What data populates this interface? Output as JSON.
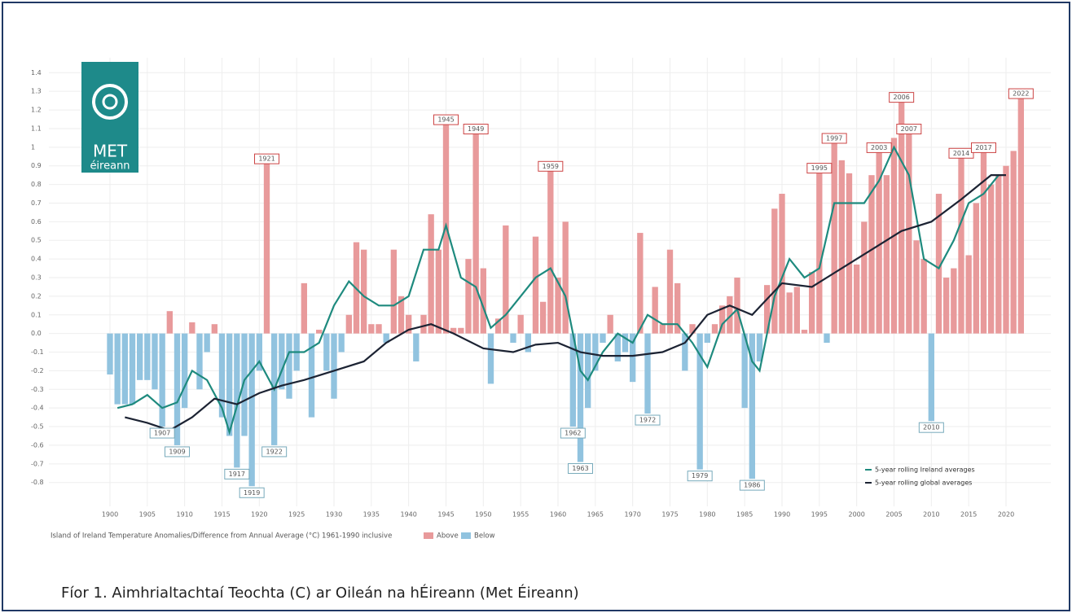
{
  "chart_data": {
    "type": "bar",
    "logo": {
      "line1": "MET",
      "line2": "éireann"
    },
    "x": [
      1900,
      1901,
      1902,
      1903,
      1904,
      1905,
      1906,
      1907,
      1908,
      1909,
      1910,
      1911,
      1912,
      1913,
      1914,
      1915,
      1916,
      1917,
      1918,
      1919,
      1920,
      1921,
      1922,
      1923,
      1924,
      1925,
      1926,
      1927,
      1928,
      1929,
      1930,
      1931,
      1932,
      1933,
      1934,
      1935,
      1936,
      1937,
      1938,
      1939,
      1940,
      1941,
      1942,
      1943,
      1944,
      1945,
      1946,
      1947,
      1948,
      1949,
      1950,
      1951,
      1952,
      1953,
      1954,
      1955,
      1956,
      1957,
      1958,
      1959,
      1960,
      1961,
      1962,
      1963,
      1964,
      1965,
      1966,
      1967,
      1968,
      1969,
      1970,
      1971,
      1972,
      1973,
      1974,
      1975,
      1976,
      1977,
      1978,
      1979,
      1980,
      1981,
      1982,
      1983,
      1984,
      1985,
      1986,
      1987,
      1988,
      1989,
      1990,
      1991,
      1992,
      1993,
      1994,
      1995,
      1996,
      1997,
      1998,
      1999,
      2000,
      2001,
      2002,
      2003,
      2004,
      2005,
      2006,
      2007,
      2008,
      2009,
      2010,
      2011,
      2012,
      2013,
      2014,
      2015,
      2016,
      2017,
      2018,
      2019,
      2020,
      2021,
      2022
    ],
    "values": [
      -0.22,
      -0.38,
      -0.38,
      -0.38,
      -0.25,
      -0.25,
      -0.3,
      -0.5,
      0.12,
      -0.6,
      -0.4,
      0.06,
      -0.3,
      -0.1,
      0.05,
      -0.45,
      -0.55,
      -0.72,
      -0.55,
      -0.82,
      -0.2,
      0.92,
      -0.6,
      -0.3,
      -0.35,
      -0.2,
      0.27,
      -0.45,
      0.02,
      -0.2,
      -0.35,
      -0.1,
      0.1,
      0.49,
      0.45,
      0.05,
      0.05,
      -0.05,
      0.45,
      0.2,
      0.1,
      -0.15,
      0.1,
      0.64,
      0.45,
      1.13,
      0.03,
      0.03,
      0.4,
      1.08,
      0.35,
      -0.27,
      0.08,
      0.58,
      -0.05,
      0.1,
      -0.1,
      0.52,
      0.17,
      0.88,
      0.3,
      0.6,
      -0.5,
      -0.69,
      -0.4,
      -0.2,
      -0.05,
      0.1,
      -0.15,
      -0.1,
      -0.26,
      0.54,
      -0.43,
      0.25,
      0.05,
      0.45,
      0.27,
      -0.2,
      0.05,
      -0.73,
      -0.05,
      0.05,
      0.15,
      0.2,
      0.3,
      -0.4,
      -0.78,
      -0.15,
      0.26,
      0.67,
      0.75,
      0.22,
      0.25,
      0.02,
      0.33,
      0.87,
      -0.05,
      1.03,
      0.93,
      0.86,
      0.37,
      0.6,
      0.85,
      0.98,
      0.85,
      1.05,
      1.25,
      1.08,
      0.5,
      0.4,
      -0.47,
      0.75,
      0.3,
      0.35,
      0.95,
      0.42,
      0.7,
      0.98,
      0.8,
      0.85,
      0.9,
      0.98,
      1.27
    ],
    "annotations": [
      "1907",
      "1909",
      "1917",
      "1919",
      "1922",
      "1921",
      "1945",
      "1949",
      "1959",
      "1962",
      "1963",
      "1972",
      "1979",
      "1986",
      "1995",
      "1997",
      "2003",
      "2006",
      "2007",
      "2010",
      "2014",
      "2017",
      "2022"
    ],
    "bar_legend_title": "Island of Ireland Temperature Anomalies/Difference from Annual Average (°C) 1961-1990 inclusive",
    "bar_legend": [
      {
        "name": "Above",
        "color": "#e89a9b"
      },
      {
        "name": "Below",
        "color": "#91c3df"
      }
    ],
    "series": [
      {
        "name": "5-year rolling Ireland averages",
        "color": "#1e8a7e",
        "x": [
          1901,
          1903,
          1905,
          1907,
          1909,
          1911,
          1913,
          1915,
          1916,
          1918,
          1920,
          1922,
          1924,
          1926,
          1928,
          1930,
          1932,
          1934,
          1936,
          1938,
          1940,
          1942,
          1944,
          1945,
          1947,
          1949,
          1951,
          1953,
          1955,
          1957,
          1959,
          1961,
          1963,
          1964,
          1966,
          1968,
          1970,
          1972,
          1974,
          1976,
          1978,
          1980,
          1982,
          1984,
          1986,
          1987,
          1989,
          1991,
          1993,
          1995,
          1997,
          1999,
          2001,
          2003,
          2005,
          2007,
          2009,
          2011,
          2013,
          2015,
          2017,
          2019
        ],
        "values": [
          -0.4,
          -0.38,
          -0.33,
          -0.4,
          -0.37,
          -0.2,
          -0.25,
          -0.4,
          -0.53,
          -0.25,
          -0.15,
          -0.3,
          -0.1,
          -0.1,
          -0.05,
          0.15,
          0.28,
          0.2,
          0.15,
          0.15,
          0.2,
          0.45,
          0.45,
          0.58,
          0.3,
          0.25,
          0.03,
          0.1,
          0.2,
          0.3,
          0.35,
          0.2,
          -0.2,
          -0.25,
          -0.1,
          0.0,
          -0.05,
          0.1,
          0.05,
          0.05,
          -0.05,
          -0.18,
          0.05,
          0.13,
          -0.15,
          -0.2,
          0.2,
          0.4,
          0.3,
          0.35,
          0.7,
          0.7,
          0.7,
          0.82,
          1.0,
          0.85,
          0.4,
          0.35,
          0.5,
          0.7,
          0.75,
          0.85
        ]
      },
      {
        "name": "5-year rolling global averages",
        "color": "#1c2333",
        "x": [
          1902,
          1905,
          1908,
          1911,
          1914,
          1917,
          1920,
          1923,
          1926,
          1930,
          1934,
          1937,
          1940,
          1943,
          1946,
          1950,
          1954,
          1957,
          1960,
          1963,
          1966,
          1970,
          1974,
          1977,
          1980,
          1983,
          1986,
          1990,
          1994,
          1998,
          2002,
          2006,
          2010,
          2014,
          2018,
          2020
        ],
        "values": [
          -0.45,
          -0.48,
          -0.52,
          -0.45,
          -0.35,
          -0.38,
          -0.32,
          -0.28,
          -0.25,
          -0.2,
          -0.15,
          -0.05,
          0.02,
          0.05,
          0.0,
          -0.08,
          -0.1,
          -0.06,
          -0.05,
          -0.1,
          -0.12,
          -0.12,
          -0.1,
          -0.05,
          0.1,
          0.15,
          0.1,
          0.27,
          0.25,
          0.35,
          0.45,
          0.55,
          0.6,
          0.72,
          0.85,
          0.85
        ]
      }
    ],
    "xlim": [
      1897,
      2026
    ],
    "xticks": [
      1900,
      1905,
      1910,
      1915,
      1920,
      1925,
      1930,
      1935,
      1940,
      1945,
      1950,
      1955,
      1960,
      1965,
      1970,
      1975,
      1980,
      1985,
      1990,
      1995,
      2000,
      2005,
      2010,
      2015,
      2020
    ],
    "ylim": [
      -0.88,
      1.48
    ],
    "yticks": [
      1.4,
      1.3,
      1.2,
      1.1,
      1.0,
      0.9,
      0.8,
      0.7,
      0.6,
      0.5,
      0.4,
      0.3,
      0.2,
      0.1,
      {
        "value": 0,
        "label": "0.0"
      },
      -0.1,
      -0.2,
      -0.3,
      -0.4,
      -0.5,
      -0.6,
      -0.7,
      -0.8
    ],
    "grid": true
  },
  "caption": "Fíor 1. Aimhrialtachtaí Teochta (C) ar Oileán na hÉireann (Met Éireann)"
}
